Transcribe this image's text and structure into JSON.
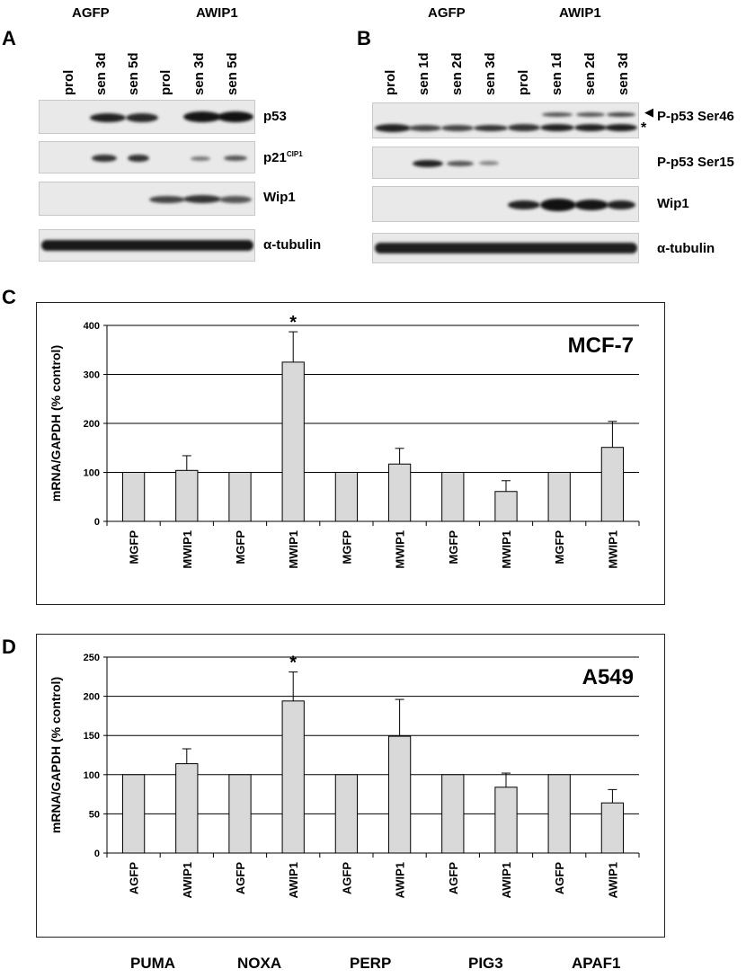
{
  "panel_a": {
    "letter": "A",
    "groups": [
      "AGFP",
      "AWIP1"
    ],
    "lanes": [
      "prol",
      "sen 3d",
      "sen 5d",
      "prol",
      "sen 3d",
      "sen 5d"
    ],
    "labels": {
      "p53": "p53",
      "p21_main": "p21",
      "p21_sup": "CIP1",
      "wip1": "Wip1",
      "tubulin": "α-tubulin"
    }
  },
  "panel_b": {
    "letter": "B",
    "groups": [
      "AGFP",
      "AWIP1"
    ],
    "lanes": [
      "prol",
      "sen 1d",
      "sen 2d",
      "sen 3d",
      "prol",
      "sen 1d",
      "sen 2d",
      "sen 3d"
    ],
    "labels": {
      "ser46": "P-p53 Ser46",
      "ser15": "P-p53 Ser15",
      "wip1": "Wip1",
      "tubulin": "α-tubulin"
    },
    "arrow": "◀",
    "asterisk": "*"
  },
  "panel_c": {
    "letter": "C"
  },
  "panel_d": {
    "letter": "D"
  },
  "genes": [
    "PUMA",
    "NOXA",
    "PERP",
    "PIG3",
    "APAF1"
  ],
  "chart_data": [
    {
      "type": "bar",
      "title": "MCF-7",
      "ylabel": "mRNA/GAPDH (% control)",
      "categories": [
        "MGFP",
        "MWIP1",
        "MGFP",
        "MWIP1",
        "MGFP",
        "MWIP1",
        "MGFP",
        "MWIP1",
        "MGFP",
        "MWIP1"
      ],
      "values": [
        100,
        104,
        100,
        325,
        100,
        117,
        100,
        61,
        100,
        151
      ],
      "errors": [
        0,
        30,
        0,
        62,
        0,
        32,
        0,
        22,
        0,
        53
      ],
      "significance": [
        "",
        "",
        "",
        "*",
        "",
        "",
        "",
        "",
        "",
        ""
      ],
      "ylim": [
        0,
        400
      ],
      "yticks": [
        0,
        100,
        200,
        300,
        400
      ],
      "bar_color": "#d9d9d9",
      "grid": true
    },
    {
      "type": "bar",
      "title": "A549",
      "ylabel": "mRNA/GAPDH (% control)",
      "categories": [
        "AGFP",
        "AWIP1",
        "AGFP",
        "AWIP1",
        "AGFP",
        "AWIP1",
        "AGFP",
        "AWIP1",
        "AGFP",
        "AWIP1"
      ],
      "values": [
        100,
        114,
        100,
        194,
        100,
        149,
        100,
        84,
        100,
        64
      ],
      "errors": [
        0,
        19,
        0,
        37,
        0,
        47,
        0,
        18,
        0,
        17
      ],
      "significance": [
        "",
        "",
        "",
        "*",
        "",
        "",
        "",
        "",
        "",
        ""
      ],
      "ylim": [
        0,
        250
      ],
      "yticks": [
        0,
        50,
        100,
        150,
        200,
        250
      ],
      "bar_color": "#d9d9d9",
      "grid": true
    }
  ]
}
